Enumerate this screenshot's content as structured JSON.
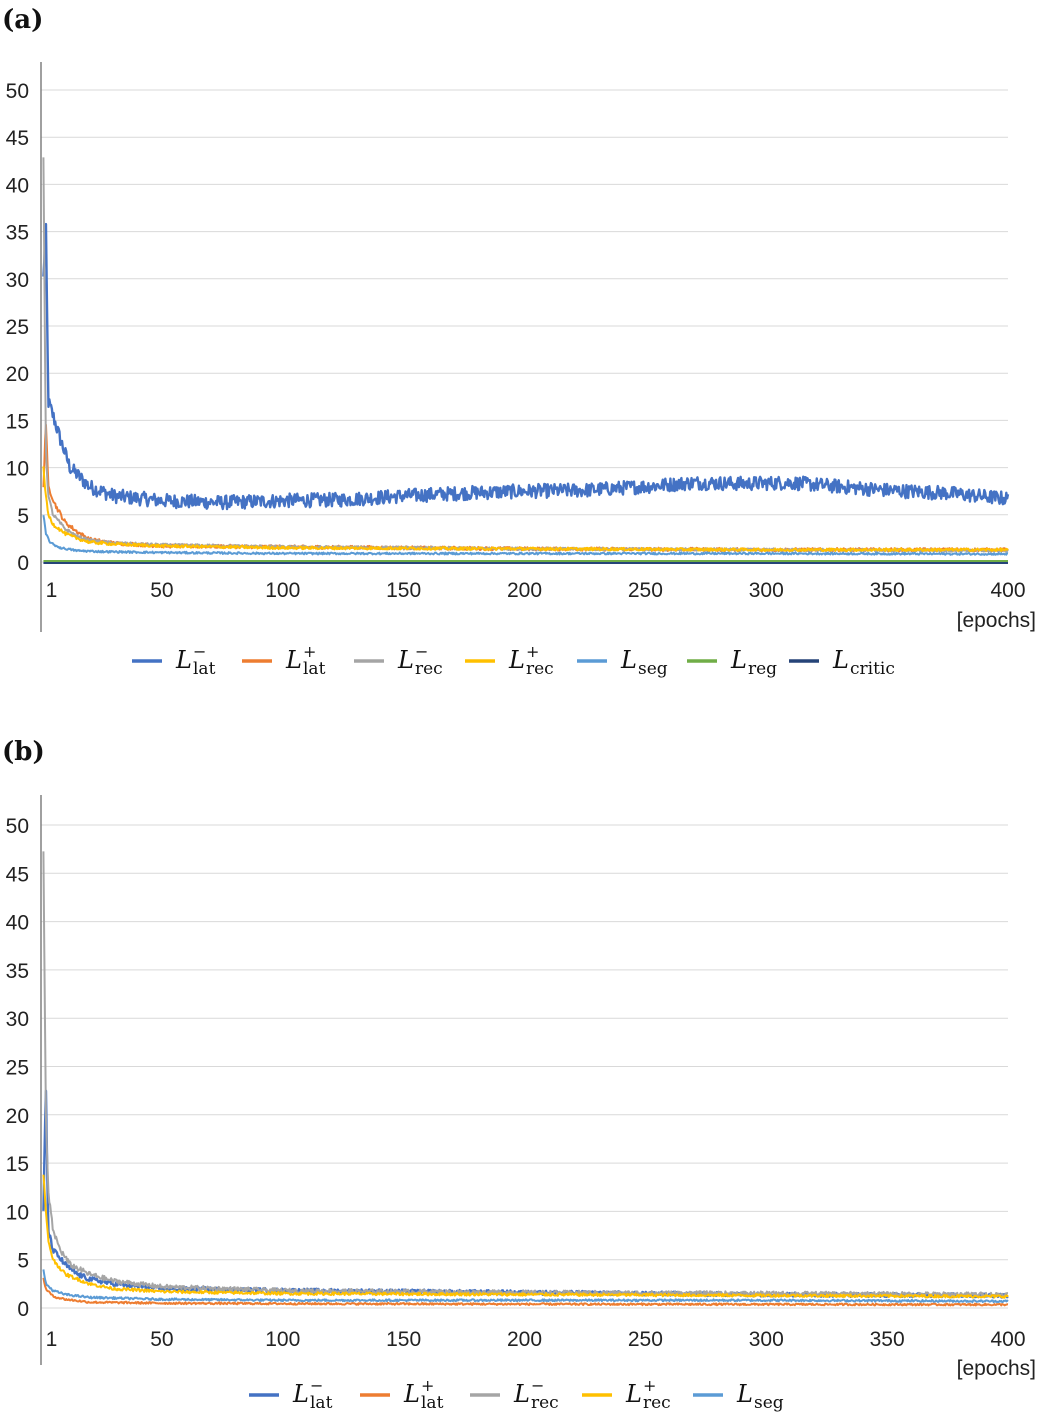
{
  "colors": {
    "L_lat_minus": "#4472c4",
    "L_lat_plus": "#ed7d31",
    "L_rec_minus": "#a5a5a5",
    "L_rec_plus": "#ffc000",
    "L_seg": "#5b9bd5",
    "L_reg": "#70ad47",
    "L_critic": "#264478"
  },
  "chart_data": [
    {
      "panel_label": "(a)",
      "type": "line",
      "x_unit_label": "[epochs]",
      "xlim": [
        0,
        400
      ],
      "ylim": [
        0,
        50
      ],
      "x_ticks": [
        1,
        50,
        100,
        150,
        200,
        250,
        300,
        350,
        400
      ],
      "y_ticks": [
        0,
        5,
        10,
        15,
        20,
        25,
        30,
        35,
        40,
        45,
        50
      ],
      "grid": true,
      "legend_position": "bottom",
      "series": [
        {
          "key": "L_lat_minus",
          "name": "L",
          "sup": "−",
          "sub": "lat",
          "x": [
            1,
            2,
            3,
            5,
            8,
            12,
            20,
            30,
            50,
            75,
            100,
            125,
            150,
            175,
            200,
            225,
            250,
            270,
            290,
            310,
            330,
            350,
            375,
            400
          ],
          "y": [
            30,
            36,
            17,
            15.5,
            13,
            10,
            8,
            7,
            6.5,
            6.3,
            6.5,
            6.6,
            7,
            7.3,
            7.5,
            7.6,
            8,
            8.4,
            8.3,
            8.4,
            8,
            7.6,
            7.3,
            6.7
          ],
          "noise": 0.75
        },
        {
          "key": "L_lat_plus",
          "name": "L",
          "sup": "+",
          "sub": "lat",
          "x": [
            1,
            2,
            3,
            6,
            10,
            15,
            20,
            30,
            50,
            100,
            200,
            300,
            400
          ],
          "y": [
            8,
            15,
            8,
            6,
            4.2,
            3.2,
            2.4,
            2,
            1.7,
            1.6,
            1.4,
            1.3,
            1.3
          ],
          "noise": 0.25
        },
        {
          "key": "L_rec_minus",
          "name": "L",
          "sup": "−",
          "sub": "rec",
          "x": [
            1,
            2,
            3,
            5,
            10,
            15,
            20,
            30,
            50,
            100,
            200,
            300,
            400
          ],
          "y": [
            43,
            12,
            7,
            5,
            3.5,
            2.7,
            2.3,
            2,
            1.8,
            1.6,
            1.4,
            1.3,
            1.2
          ],
          "noise": 0.2
        },
        {
          "key": "L_rec_plus",
          "name": "L",
          "sup": "+",
          "sub": "rec",
          "x": [
            1,
            2,
            3,
            5,
            10,
            15,
            20,
            30,
            50,
            100,
            200,
            300,
            400
          ],
          "y": [
            10,
            7,
            5,
            4,
            3,
            2.5,
            2.1,
            1.9,
            1.7,
            1.5,
            1.4,
            1.3,
            1.3
          ],
          "noise": 0.2
        },
        {
          "key": "L_seg",
          "name": "L",
          "sup": "",
          "sub": "seg",
          "x": [
            1,
            2,
            4,
            8,
            15,
            25,
            50,
            100,
            200,
            300,
            400
          ],
          "y": [
            5,
            3,
            2,
            1.5,
            1.2,
            1.1,
            1,
            0.9,
            0.9,
            0.9,
            0.85
          ],
          "noise": 0.15
        },
        {
          "key": "L_reg",
          "name": "L",
          "sup": "",
          "sub": "reg",
          "x": [
            1,
            400
          ],
          "y": [
            0.1,
            0.1
          ],
          "noise": 0
        },
        {
          "key": "L_critic",
          "name": "L",
          "sup": "",
          "sub": "critic",
          "x": [
            1,
            400
          ],
          "y": [
            -0.1,
            -0.1
          ],
          "noise": 0
        }
      ]
    },
    {
      "panel_label": "(b)",
      "type": "line",
      "x_unit_label": "[epochs]",
      "xlim": [
        0,
        400
      ],
      "ylim": [
        0,
        50
      ],
      "x_ticks": [
        1,
        50,
        100,
        150,
        200,
        250,
        300,
        350,
        400
      ],
      "y_ticks": [
        0,
        5,
        10,
        15,
        20,
        25,
        30,
        35,
        40,
        45,
        50
      ],
      "grid": true,
      "legend_position": "bottom",
      "series": [
        {
          "key": "L_lat_minus",
          "name": "L",
          "sup": "−",
          "sub": "lat",
          "x": [
            1,
            2,
            3,
            5,
            10,
            15,
            20,
            30,
            50,
            100,
            200,
            300,
            400
          ],
          "y": [
            10,
            23,
            8,
            6,
            4.5,
            3.5,
            3,
            2.5,
            2,
            1.8,
            1.6,
            1.4,
            1.3
          ],
          "noise": 0.3
        },
        {
          "key": "L_lat_plus",
          "name": "L",
          "sup": "+",
          "sub": "lat",
          "x": [
            1,
            2,
            5,
            10,
            20,
            50,
            100,
            200,
            400
          ],
          "y": [
            3,
            2,
            1.2,
            0.9,
            0.6,
            0.5,
            0.45,
            0.4,
            0.35
          ],
          "noise": 0.15
        },
        {
          "key": "L_rec_minus",
          "name": "L",
          "sup": "−",
          "sub": "rec",
          "x": [
            1,
            2,
            3,
            5,
            8,
            12,
            20,
            30,
            50,
            100,
            200,
            300,
            400
          ],
          "y": [
            47,
            20,
            12,
            8,
            6,
            4.5,
            3.5,
            2.8,
            2.2,
            1.8,
            1.6,
            1.5,
            1.4
          ],
          "noise": 0.3
        },
        {
          "key": "L_rec_plus",
          "name": "L",
          "sup": "+",
          "sub": "rec",
          "x": [
            1,
            2,
            3,
            5,
            10,
            20,
            30,
            50,
            100,
            200,
            300,
            400
          ],
          "y": [
            14,
            10,
            7,
            5,
            3.5,
            2.5,
            2,
            1.7,
            1.5,
            1.4,
            1.3,
            1.2
          ],
          "noise": 0.2
        },
        {
          "key": "L_seg",
          "name": "L",
          "sup": "",
          "sub": "seg",
          "x": [
            1,
            2,
            5,
            10,
            20,
            50,
            100,
            200,
            300,
            400
          ],
          "y": [
            4,
            2.5,
            1.8,
            1.4,
            1.1,
            0.9,
            0.8,
            0.8,
            0.8,
            0.7
          ],
          "noise": 0.15
        }
      ]
    }
  ]
}
